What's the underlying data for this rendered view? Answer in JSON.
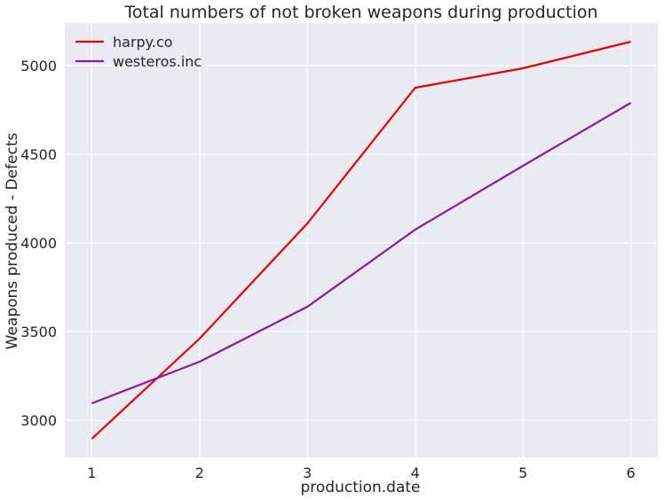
{
  "chart_data": {
    "type": "line",
    "title": "Total numbers of not broken weapons during production",
    "xlabel": "production.date",
    "ylabel": "Weapons produced - Defects",
    "x": [
      1,
      2,
      3,
      4,
      5,
      6
    ],
    "xlim": [
      0.75,
      6.25
    ],
    "ylim": [
      2790,
      5240
    ],
    "xticks": [
      "1",
      "2",
      "3",
      "4",
      "5",
      "6"
    ],
    "yticks": [
      "3000",
      "3500",
      "4000",
      "4500",
      "5000"
    ],
    "grid": true,
    "legend_position": "top-left",
    "series": [
      {
        "name": "harpy.co",
        "color": "#e30000",
        "values": [
          2895,
          3460,
          4110,
          4875,
          4985,
          5135
        ]
      },
      {
        "name": "westeros.inc",
        "color": "#8419a3",
        "values": [
          3095,
          3330,
          3640,
          4075,
          4435,
          4790
        ]
      }
    ]
  }
}
